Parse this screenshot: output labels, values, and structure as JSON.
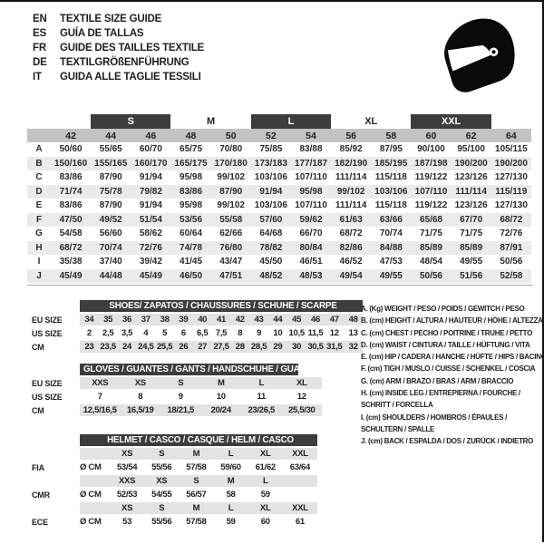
{
  "header": {
    "languages": [
      {
        "code": "EN",
        "text": "TEXTILE SIZE GUIDE"
      },
      {
        "code": "ES",
        "text": "GUÍA DE TALLAS"
      },
      {
        "code": "FR",
        "text": "GUIDE DES TAILLES TEXTILE"
      },
      {
        "code": "DE",
        "text": "TEXTILGRÖßENFÜHRUNG"
      },
      {
        "code": "IT",
        "text": "GUIDA ALLE TAGLIE TESSILI"
      }
    ],
    "icon": "racing-helmet-icon"
  },
  "main_size_table": {
    "size_groups": [
      {
        "label": "S",
        "dark": true
      },
      {
        "label": "M",
        "dark": false
      },
      {
        "label": "L",
        "dark": true
      },
      {
        "label": "XL",
        "dark": false
      },
      {
        "label": "XXL",
        "dark": true
      }
    ],
    "numeric_sizes": [
      "42",
      "44",
      "46",
      "48",
      "50",
      "52",
      "54",
      "56",
      "58",
      "60",
      "62",
      "64"
    ],
    "rows": [
      {
        "label": "A",
        "values": [
          "50/60",
          "55/65",
          "60/70",
          "65/75",
          "70/80",
          "75/85",
          "83/88",
          "85/92",
          "87/95",
          "90/100",
          "95/100",
          "105/115"
        ]
      },
      {
        "label": "B",
        "values": [
          "150/160",
          "155/165",
          "160/170",
          "165/175",
          "170/180",
          "173/183",
          "177/187",
          "182/190",
          "185/195",
          "187/198",
          "190/200",
          "190/200"
        ]
      },
      {
        "label": "C",
        "values": [
          "83/86",
          "87/90",
          "91/94",
          "95/98",
          "99/102",
          "103/106",
          "107/110",
          "111/114",
          "115/118",
          "119/122",
          "123/126",
          "127/130"
        ]
      },
      {
        "label": "D",
        "values": [
          "71/74",
          "75/78",
          "79/82",
          "83/86",
          "87/90",
          "91/94",
          "95/98",
          "99/102",
          "103/106",
          "107/110",
          "111/114",
          "115/119"
        ]
      },
      {
        "label": "E",
        "values": [
          "83/86",
          "87/90",
          "91/94",
          "95/98",
          "99/102",
          "103/106",
          "107/110",
          "111/114",
          "115/118",
          "119/122",
          "123/126",
          "127/130"
        ]
      },
      {
        "label": "F",
        "values": [
          "47/50",
          "49/52",
          "51/54",
          "53/56",
          "55/58",
          "57/60",
          "59/62",
          "61/63",
          "63/66",
          "65/68",
          "67/70",
          "68/72"
        ]
      },
      {
        "label": "G",
        "values": [
          "54/58",
          "56/60",
          "58/62",
          "60/64",
          "62/66",
          "64/68",
          "66/70",
          "68/72",
          "70/74",
          "71/75",
          "71/75",
          "72/76"
        ]
      },
      {
        "label": "H",
        "values": [
          "68/72",
          "70/74",
          "72/76",
          "74/78",
          "76/80",
          "78/82",
          "80/84",
          "82/86",
          "84/88",
          "85/89",
          "85/89",
          "87/91"
        ]
      },
      {
        "label": "I",
        "values": [
          "35/38",
          "37/40",
          "39/42",
          "41/45",
          "43/47",
          "45/50",
          "46/51",
          "46/52",
          "47/53",
          "48/54",
          "49/55",
          "50/56"
        ]
      },
      {
        "label": "J",
        "values": [
          "45/49",
          "44/48",
          "45/49",
          "46/50",
          "47/51",
          "48/52",
          "48/53",
          "49/54",
          "49/55",
          "50/56",
          "51/56",
          "52/58"
        ]
      }
    ]
  },
  "shoes_table": {
    "title": "SHOES/ ZAPATOS / CHAUSSURES / SCHUHE / SCARPE",
    "rows": [
      {
        "label": "EU SIZE",
        "values": [
          "34",
          "35",
          "36",
          "37",
          "38",
          "39",
          "40",
          "41",
          "42",
          "43",
          "44",
          "45",
          "46",
          "47",
          "48"
        ]
      },
      {
        "label": "US SIZE",
        "values": [
          "2",
          "2,5",
          "3,5",
          "4",
          "5",
          "6",
          "6,5",
          "7,5",
          "8",
          "9",
          "10",
          "10,5",
          "11,5",
          "12",
          "13"
        ]
      },
      {
        "label": "CM",
        "values": [
          "23",
          "23,5",
          "24",
          "24,5",
          "25,5",
          "26",
          "27",
          "27,5",
          "28",
          "28,5",
          "29",
          "30",
          "30,5",
          "31,5",
          "32"
        ]
      }
    ]
  },
  "gloves_table": {
    "title": "GLOVES / GUANTES / GANTS / HANDSCHUHE / GUANTI",
    "rows": [
      {
        "label": "EU SIZE",
        "values": [
          "XXS",
          "XS",
          "S",
          "M",
          "L",
          "XL"
        ]
      },
      {
        "label": "US SIZE",
        "values": [
          "7",
          "8",
          "9",
          "10",
          "11",
          "12"
        ]
      },
      {
        "label": "CM",
        "values": [
          "12,5/16,5",
          "16,5/19",
          "18/21,5",
          "20/24",
          "23/26,5",
          "25,5/30"
        ]
      }
    ]
  },
  "helmet_table": {
    "title": "HELMET / CASCO / CASQUE / HELM / CASCO",
    "sections": [
      {
        "label": "FIA",
        "unit": "Ø CM",
        "sizes": [
          "XS",
          "S",
          "M",
          "L",
          "XL",
          "XXL"
        ],
        "values": [
          "53/54",
          "55/56",
          "57/58",
          "59/60",
          "61/62",
          "63/64"
        ]
      },
      {
        "label": "CMR",
        "unit": "Ø CM",
        "sizes": [
          "XXS",
          "XS",
          "S",
          "M",
          "L",
          ""
        ],
        "values": [
          "52/53",
          "54/55",
          "56/57",
          "58",
          "59",
          ""
        ]
      },
      {
        "label": "ECE",
        "unit": "Ø CM",
        "sizes": [
          "XS",
          "S",
          "M",
          "L",
          "XL",
          "XXL"
        ],
        "values": [
          "53",
          "55/56",
          "57/58",
          "59",
          "60",
          "61"
        ]
      }
    ]
  },
  "legend": {
    "entries": [
      {
        "lines": [
          "A. (Kg) WEIGHT / PESO / POIDS / GEWITCH / PESO"
        ]
      },
      {
        "lines": [
          "B. (cm) HEIGHT / ALTURA / HAUTEUR / HÖHE / ALTEZZA"
        ]
      },
      {
        "lines": [
          "C. (cm) CHEST / PECHO / POITRINE / TRUHE / PETTO"
        ]
      },
      {
        "lines": [
          "D. (cm) WAIST / CINTURA / TAILLE / HÜFTUNG / VITA"
        ]
      },
      {
        "lines": [
          "E. (cm) HIP / CADERA / HANCHE / HÜFTE / HIPS / BACINO"
        ]
      },
      {
        "lines": [
          "F. (cm) TIGH / MUSLO / CUISSE / SCHENKEL / COSCIA"
        ]
      },
      {
        "lines": [
          "G. (cm) ARM / BRAZO / BRAS / ARM / BRACCIO"
        ]
      },
      {
        "lines": [
          "H. (cm) INSIDE LEG / ENTREPIERNA / FOURCHE /",
          "SCHRITT / FORCELLA"
        ]
      },
      {
        "lines": [
          "I. (cm) SHOULDERS / HOMBROS / ÉPAULES /",
          "SCHULTERN / SPALLE"
        ]
      },
      {
        "lines": [
          "J. (cm) BACK / ESPALDA / DOS / ZURÜCK / INDIETRO"
        ]
      }
    ]
  },
  "colors": {
    "dark_bar": "#3d3d3d",
    "numeric_band": "#c3c3c3",
    "row_stripe": "#ebebeb",
    "sub_band": "#e3e3e3",
    "border_black": "#111111"
  }
}
